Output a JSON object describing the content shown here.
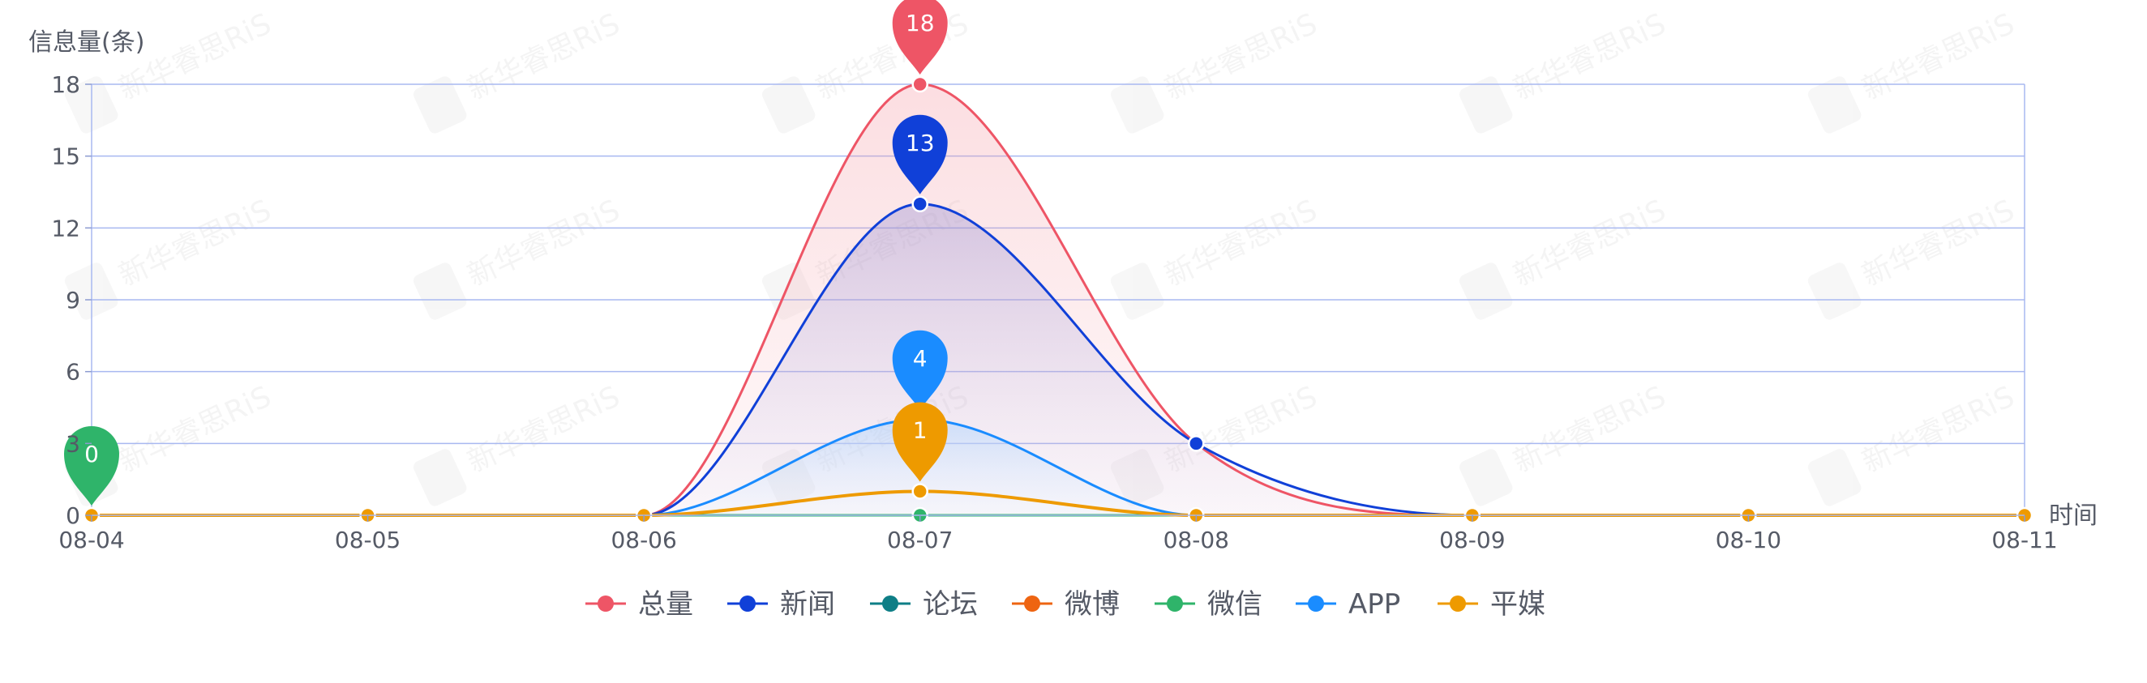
{
  "chart_data": {
    "type": "area",
    "ylabel": "信息量(条)",
    "xlabel": "时间",
    "categories": [
      "08-04",
      "08-05",
      "08-06",
      "08-07",
      "08-08",
      "08-09",
      "08-10",
      "08-11"
    ],
    "ylim": [
      0,
      18
    ],
    "yticks": [
      0,
      3,
      6,
      9,
      12,
      15,
      18
    ],
    "grid": true,
    "legend_position": "bottom",
    "watermark_text": "新华睿思RiS",
    "series": [
      {
        "name": "总量",
        "color": "#ee5566",
        "fill": true,
        "values": [
          0,
          0,
          0,
          18,
          3,
          0,
          0,
          0
        ],
        "pin": {
          "index": 3,
          "label": "18"
        }
      },
      {
        "name": "新闻",
        "color": "#1040d8",
        "fill": true,
        "values": [
          0,
          0,
          0,
          13,
          3,
          0,
          0,
          0
        ],
        "pin": {
          "index": 3,
          "label": "13"
        }
      },
      {
        "name": "论坛",
        "color": "#0e7e86",
        "fill": false,
        "values": [
          0,
          0,
          0,
          0,
          0,
          0,
          0,
          0
        ]
      },
      {
        "name": "微博",
        "color": "#ee6411",
        "fill": false,
        "values": [
          0,
          0,
          0,
          0,
          0,
          0,
          0,
          0
        ]
      },
      {
        "name": "微信",
        "color": "#2fb46a",
        "fill": false,
        "values": [
          0,
          0,
          0,
          0,
          0,
          0,
          0,
          0
        ],
        "pin": {
          "index": 0,
          "label": "0"
        }
      },
      {
        "name": "APP",
        "color": "#1a8cff",
        "fill": true,
        "values": [
          0,
          0,
          0,
          4,
          0,
          0,
          0,
          0
        ],
        "pin": {
          "index": 3,
          "label": "4"
        }
      },
      {
        "name": "平媒",
        "color": "#ee9a00",
        "fill": false,
        "values": [
          0,
          0,
          0,
          1,
          0,
          0,
          0,
          0
        ],
        "pin": {
          "index": 3,
          "label": "1"
        }
      }
    ]
  }
}
